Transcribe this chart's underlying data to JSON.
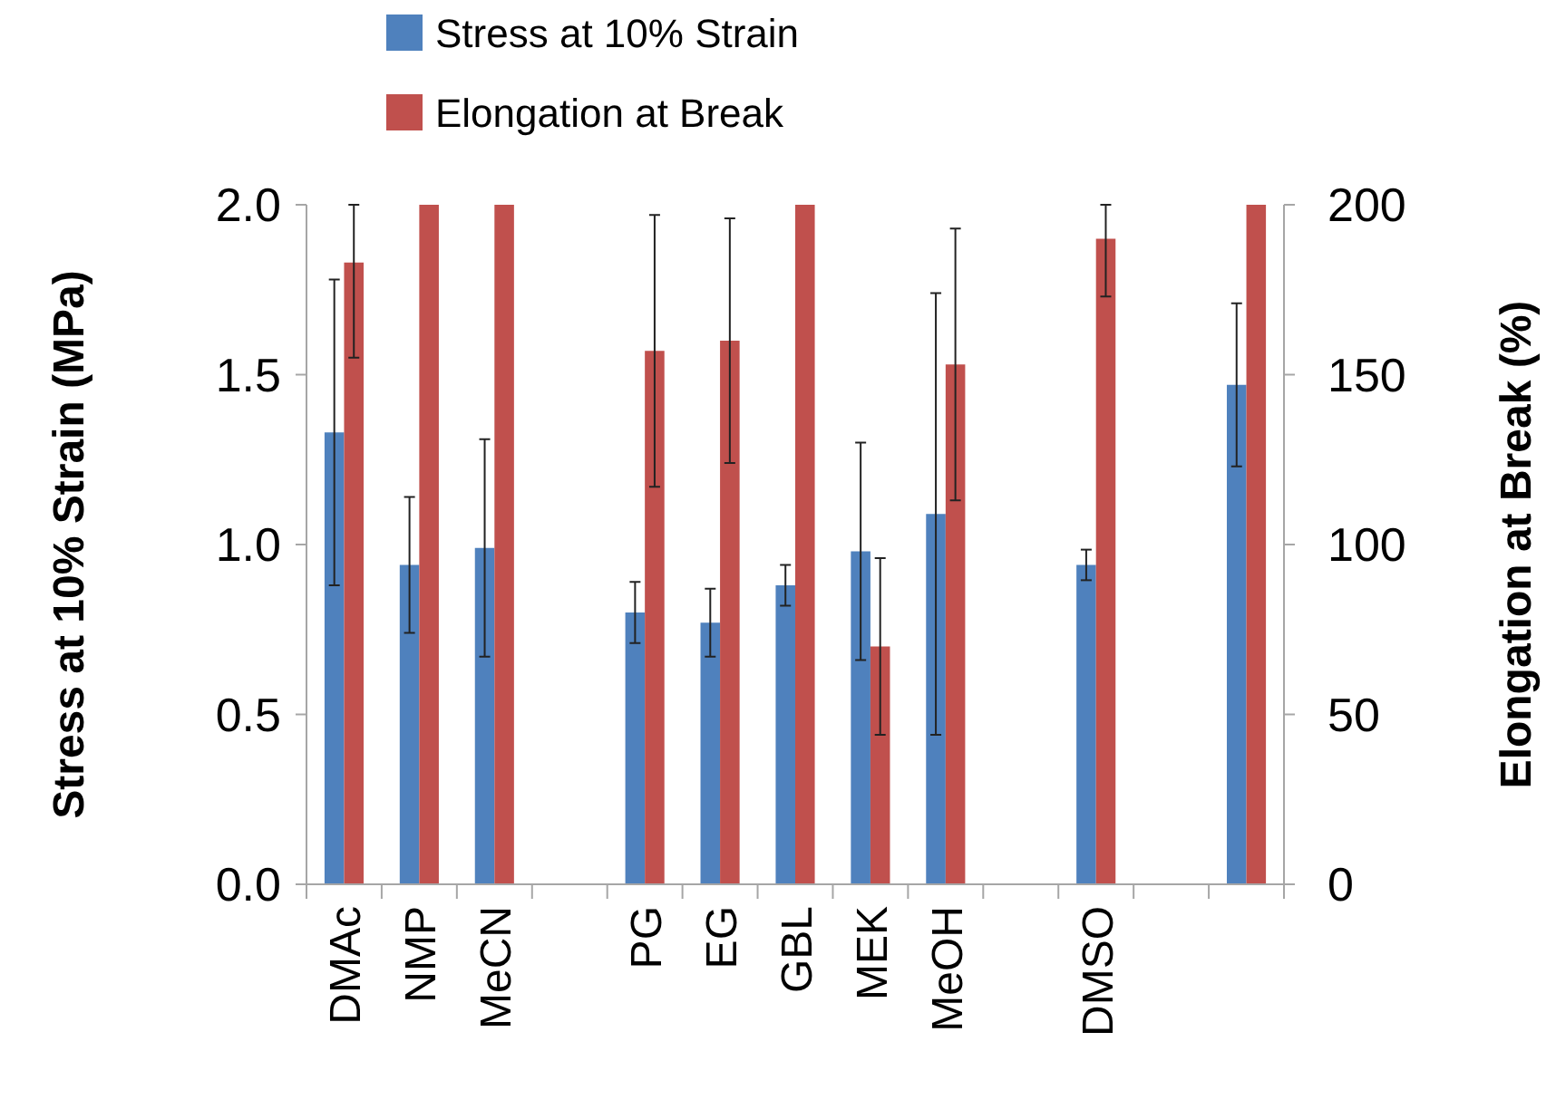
{
  "chart_data": {
    "type": "bar",
    "categories": [
      "DMAc",
      "NMP",
      "MeCN",
      null,
      "PG",
      "EG",
      "GBL",
      "MEK",
      "MeOH",
      null,
      "DMSO",
      null,
      null
    ],
    "series": [
      {
        "name": "Stress at 10% Strain",
        "color": "#4f81bd",
        "values": [
          1.33,
          0.94,
          0.99,
          null,
          0.8,
          0.77,
          0.88,
          0.98,
          1.09,
          null,
          0.94,
          null,
          1.47
        ],
        "errors": [
          0.45,
          0.2,
          0.32,
          null,
          0.09,
          0.1,
          0.06,
          0.32,
          0.65,
          null,
          0.045,
          null,
          0.24
        ]
      },
      {
        "name": "Elongation at Break",
        "color": "#c0504d",
        "axis": "y2",
        "values": [
          183,
          200,
          200,
          null,
          157,
          160,
          200,
          70,
          153,
          null,
          190,
          null,
          200
        ],
        "errors": [
          [
            155,
            200
          ],
          null,
          null,
          null,
          40,
          36,
          null,
          26,
          40,
          null,
          [
            173,
            200
          ],
          null,
          null
        ]
      }
    ],
    "ylabel": "Stress at 10% Strain (MPa)",
    "y2label": "Elongation at Break (%)",
    "ylim": [
      0,
      2
    ],
    "yticks": [
      {
        "value": 0,
        "label": "0.0"
      },
      {
        "value": 0.5,
        "label": "0.5"
      },
      {
        "value": 1,
        "label": "1.0"
      },
      {
        "value": 1.5,
        "label": "1.5"
      },
      {
        "value": 2,
        "label": "2.0"
      }
    ],
    "y2lim": [
      0,
      200
    ],
    "y2ticks": [
      0,
      50,
      100,
      150,
      200
    ],
    "legend": "top",
    "grid": false
  }
}
